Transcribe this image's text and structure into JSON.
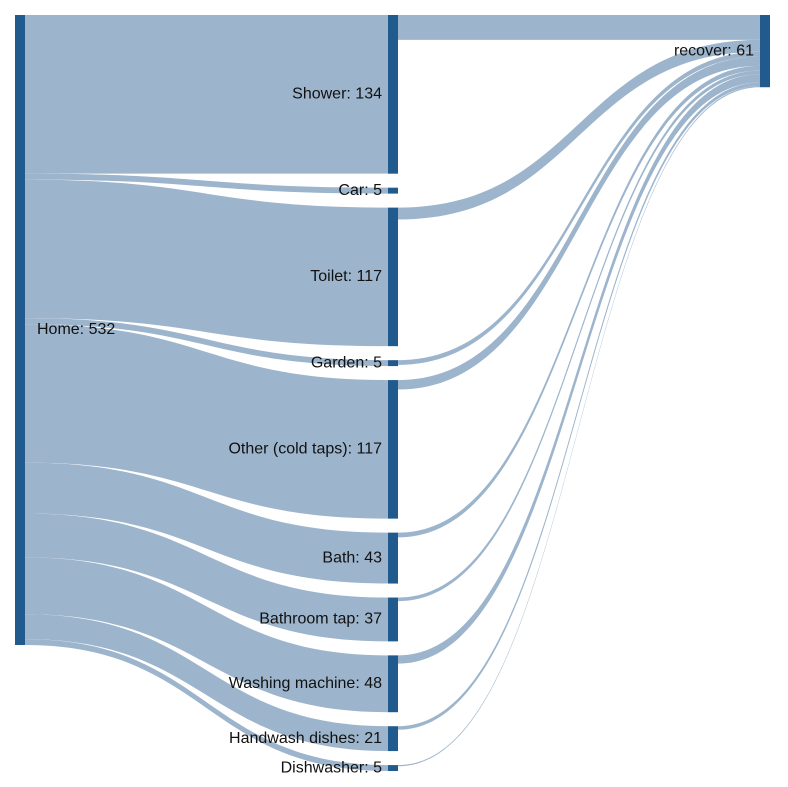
{
  "chart_data": {
    "type": "sankey",
    "node_color": "#215a8c",
    "link_color": "#9db5cc",
    "nodes": [
      {
        "label": "Home: 532",
        "value": 532,
        "column": 0
      },
      {
        "label": "Shower: 134",
        "value": 134,
        "column": 1
      },
      {
        "label": "Car: 5",
        "value": 5,
        "column": 1
      },
      {
        "label": "Toilet: 117",
        "value": 117,
        "column": 1
      },
      {
        "label": "Garden: 5",
        "value": 5,
        "column": 1
      },
      {
        "label": "Other (cold taps): 117",
        "value": 117,
        "column": 1
      },
      {
        "label": "Bath: 43",
        "value": 43,
        "column": 1
      },
      {
        "label": "Bathroom tap: 37",
        "value": 37,
        "column": 1
      },
      {
        "label": "Washing machine: 48",
        "value": 48,
        "column": 1
      },
      {
        "label": "Handwash dishes: 21",
        "value": 21,
        "column": 1
      },
      {
        "label": "Dishwasher: 5",
        "value": 5,
        "column": 1
      },
      {
        "label": "recover: 61",
        "value": 61,
        "column": 2
      }
    ],
    "links": [
      {
        "source": 0,
        "target": 1,
        "value": 134
      },
      {
        "source": 0,
        "target": 2,
        "value": 5
      },
      {
        "source": 0,
        "target": 3,
        "value": 117
      },
      {
        "source": 0,
        "target": 4,
        "value": 5
      },
      {
        "source": 0,
        "target": 5,
        "value": 117
      },
      {
        "source": 0,
        "target": 6,
        "value": 43
      },
      {
        "source": 0,
        "target": 7,
        "value": 37
      },
      {
        "source": 0,
        "target": 8,
        "value": 48
      },
      {
        "source": 0,
        "target": 9,
        "value": 21
      },
      {
        "source": 0,
        "target": 10,
        "value": 5
      },
      {
        "source": 1,
        "target": 11,
        "value": 21
      },
      {
        "source": 3,
        "target": 11,
        "value": 10
      },
      {
        "source": 4,
        "target": 11,
        "value": 4
      },
      {
        "source": 5,
        "target": 11,
        "value": 8
      },
      {
        "source": 6,
        "target": 11,
        "value": 4
      },
      {
        "source": 7,
        "target": 11,
        "value": 3
      },
      {
        "source": 8,
        "target": 11,
        "value": 7
      },
      {
        "source": 9,
        "target": 11,
        "value": 3
      },
      {
        "source": 10,
        "target": 11,
        "value": 1
      }
    ]
  }
}
